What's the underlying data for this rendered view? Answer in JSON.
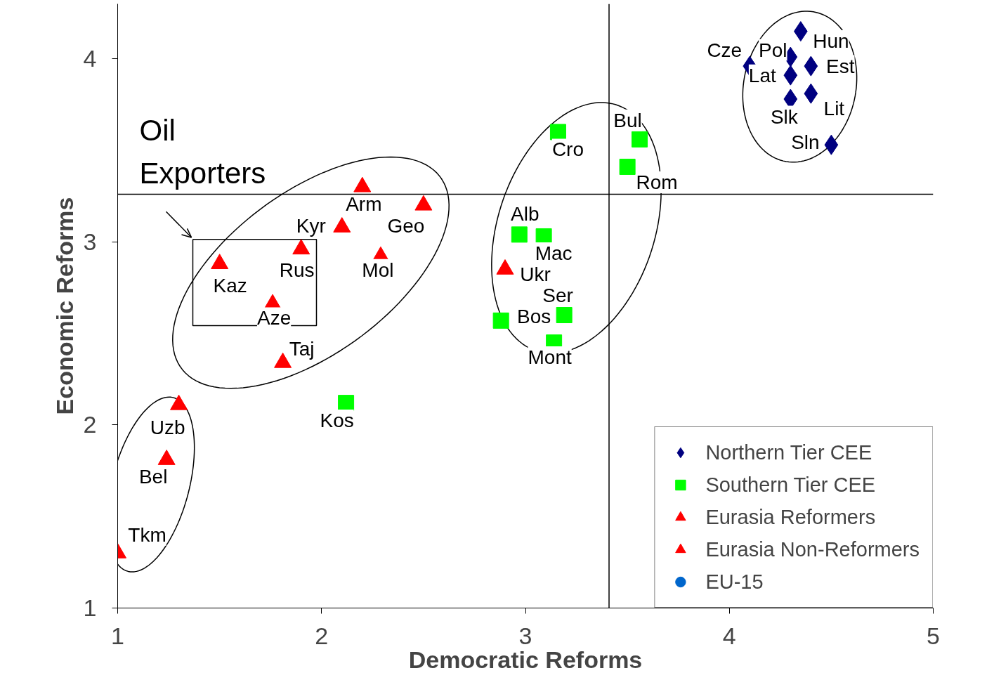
{
  "chart_data": {
    "type": "scatter",
    "xlabel": "Democratic Reforms",
    "ylabel": "Economic Reforms",
    "xlim": [
      1,
      5
    ],
    "ylim": [
      1,
      4.3
    ],
    "xticks": [
      1,
      2,
      3,
      4,
      5
    ],
    "yticks": [
      1,
      2,
      3,
      4
    ],
    "grid": false,
    "legend": "bottom right",
    "series": [
      {
        "name": "Northern Tier CEE",
        "color": "#000080",
        "marker": "diamond",
        "x": [
          4.35,
          4.3,
          4.4,
          4.1,
          4.3,
          4.4,
          4.3,
          4.5
        ],
        "values": [
          4.15,
          4.01,
          3.96,
          3.96,
          3.91,
          3.81,
          3.78,
          3.53
        ]
      },
      {
        "name": "Southern Tier CEE",
        "color": "#00ff00",
        "marker": "square",
        "x": [
          3.16,
          3.56,
          3.5,
          2.97,
          3.09,
          3.19,
          2.88,
          3.14,
          2.12
        ],
        "values": [
          3.6,
          3.56,
          3.41,
          3.04,
          3.03,
          2.6,
          2.57,
          2.45,
          2.12
        ]
      },
      {
        "name": "Eurasia Reformers",
        "color": "#ff0000",
        "marker": "triangle",
        "x": [
          2.2,
          2.5,
          2.1,
          1.9,
          2.29,
          1.5,
          2.9,
          1.76,
          1.81
        ],
        "values": [
          3.3,
          3.2,
          3.08,
          2.96,
          2.92,
          2.88,
          2.85,
          2.66,
          2.34
        ]
      },
      {
        "name": "Eurasia Non-Reformers",
        "color": "#ff0000",
        "marker": "triangle",
        "x": [
          1.3,
          1.24,
          1.0
        ],
        "values": [
          2.11,
          1.81,
          1.3
        ]
      },
      {
        "name": "EU-15",
        "color": "#0066cc",
        "marker": "circle"
      }
    ],
    "ref_lines": [
      {
        "axis": "x",
        "value": 3.41,
        "label": null
      },
      {
        "axis": "y",
        "value": 3.26,
        "label": null
      }
    ],
    "annotations": [
      "Oil Exporters",
      {
        "text": "Hun",
        "x": 4.35,
        "y": 4.15
      },
      {
        "text": "Pol",
        "x": 4.3,
        "y": 4.01
      },
      {
        "text": "Est",
        "x": 4.4,
        "y": 3.96
      },
      {
        "text": "Cze",
        "x": 4.1,
        "y": 3.96
      },
      {
        "text": "Lat",
        "x": 4.3,
        "y": 3.91
      },
      {
        "text": "Lit",
        "x": 4.4,
        "y": 3.81
      },
      {
        "text": "Slk",
        "x": 4.3,
        "y": 3.78
      },
      {
        "text": "Sln",
        "x": 4.5,
        "y": 3.53
      },
      {
        "text": "Cro",
        "x": 3.16,
        "y": 3.6
      },
      {
        "text": "Bul",
        "x": 3.56,
        "y": 3.56
      },
      {
        "text": "Rom",
        "x": 3.5,
        "y": 3.41
      },
      {
        "text": "Alb",
        "x": 2.97,
        "y": 3.04
      },
      {
        "text": "Mac",
        "x": 3.09,
        "y": 3.03
      },
      {
        "text": "Ser",
        "x": 3.19,
        "y": 2.6
      },
      {
        "text": "Bos",
        "x": 2.88,
        "y": 2.57
      },
      {
        "text": "Mont",
        "x": 3.14,
        "y": 2.45
      },
      {
        "text": "Kos",
        "x": 2.12,
        "y": 2.12
      },
      {
        "text": "Arm",
        "x": 2.2,
        "y": 3.3
      },
      {
        "text": "Geo",
        "x": 2.5,
        "y": 3.2
      },
      {
        "text": "Kyr",
        "x": 2.1,
        "y": 3.08
      },
      {
        "text": "Rus",
        "x": 1.9,
        "y": 2.96
      },
      {
        "text": "Mol",
        "x": 2.29,
        "y": 2.92
      },
      {
        "text": "Kaz",
        "x": 1.5,
        "y": 2.88
      },
      {
        "text": "Ukr",
        "x": 2.9,
        "y": 2.85
      },
      {
        "text": "Aze",
        "x": 1.76,
        "y": 2.66
      },
      {
        "text": "Taj",
        "x": 1.81,
        "y": 2.34
      },
      {
        "text": "Uzb",
        "x": 1.3,
        "y": 2.11
      },
      {
        "text": "Bel",
        "x": 1.24,
        "y": 1.81
      },
      {
        "text": "Tkm",
        "x": 1.0,
        "y": 1.3
      }
    ]
  }
}
